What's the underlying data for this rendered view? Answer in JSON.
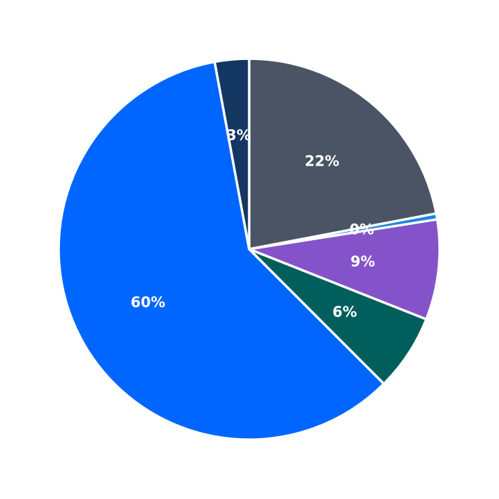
{
  "chart_data": {
    "type": "pie",
    "start_angle_deg": 90,
    "direction": "clockwise",
    "legend": "none",
    "slices": [
      {
        "value": 22.0,
        "label": "22%",
        "color": "#4a5465"
      },
      {
        "value": 0.5,
        "label": "0%",
        "color": "#1c84e0"
      },
      {
        "value": 8.5,
        "label": "9%",
        "color": "#8553c9"
      },
      {
        "value": 6.5,
        "label": "6%",
        "color": "#005f5c"
      },
      {
        "value": 59.6,
        "label": "60%",
        "color": "#0066ff"
      },
      {
        "value": 2.9,
        "label": "3%",
        "color": "#143762"
      }
    ]
  }
}
